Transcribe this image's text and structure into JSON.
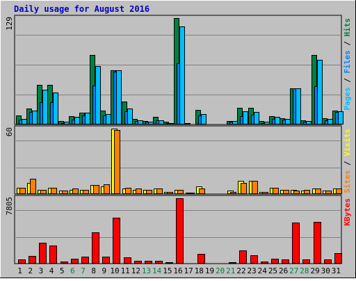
{
  "colors": {
    "hits": "#008040",
    "files": "#0080ff",
    "pages": "#00c0ff",
    "visits": "#ffff00",
    "sites": "#ff8000",
    "kbytes": "#ff0000",
    "title": "#0000c0",
    "weekend": "#008040",
    "weekday": "#000000",
    "background": "#c0c0c0"
  },
  "chart_data": {
    "type": "bar",
    "title": "Daily usage for August 2016",
    "days": [
      "1",
      "2",
      "3",
      "4",
      "5",
      "6",
      "7",
      "8",
      "9",
      "10",
      "11",
      "12",
      "13",
      "14",
      "15",
      "16",
      "17",
      "18",
      "19",
      "20",
      "21",
      "22",
      "23",
      "24",
      "25",
      "26",
      "27",
      "28",
      "29",
      "30",
      "31"
    ],
    "weekend_days": [
      6,
      7,
      13,
      14,
      20,
      21,
      27,
      28
    ],
    "panels": [
      {
        "id": "top",
        "scale_label": "129",
        "ymax": 129,
        "legend": [
          {
            "text": "Pages",
            "color": "#00c0ff"
          },
          {
            "text": "Files",
            "color": "#0080ff"
          },
          {
            "text": "Hits",
            "color": "#008040"
          }
        ],
        "series": [
          {
            "name": "Hits",
            "color": "#008040",
            "values": [
              11,
              19,
              48,
              48,
              4,
              10,
              14,
              84,
              17,
              66,
              28,
              7,
              4,
              9,
              3,
              129,
              2,
              18,
              0,
              0,
              4,
              20,
              20,
              4,
              10,
              8,
              44,
              5,
              84,
              8,
              17
            ]
          },
          {
            "name": "Files",
            "color": "#0080ff",
            "values": [
              6,
              15,
              27,
              27,
              2,
              6,
              11,
              47,
              11,
              64,
              16,
              4,
              3,
              5,
              2,
              74,
              1,
              11,
              0,
              0,
              3,
              10,
              12,
              2,
              7,
              6,
              44,
              3,
              46,
              5,
              15
            ]
          },
          {
            "name": "Pages",
            "color": "#00c0ff",
            "values": [
              7,
              17,
              42,
              39,
              3,
              9,
              14,
              71,
              13,
              66,
              19,
              5,
              3,
              5,
              2,
              119,
              1,
              13,
              0,
              0,
              4,
              16,
              15,
              3,
              9,
              7,
              44,
              4,
              78,
              7,
              16
            ]
          }
        ]
      },
      {
        "id": "middle",
        "scale_label": "60",
        "ymax": 60,
        "legend": [
          {
            "text": "Sites",
            "color": "#ff8000"
          },
          {
            "text": "Visits",
            "color": "#ffff00"
          }
        ],
        "series": [
          {
            "name": "Visits",
            "color": "#ffff00",
            "values": [
              6,
              10,
              4,
              6,
              3,
              4,
              4,
              8,
              7,
              60,
              5,
              4,
              4,
              5,
              2,
              4,
              1,
              7,
              0,
              0,
              3,
              12,
              12,
              2,
              6,
              4,
              4,
              3,
              5,
              3,
              5
            ]
          },
          {
            "name": "Sites",
            "color": "#ff8000",
            "values": [
              6,
              14,
              4,
              6,
              3,
              5,
              4,
              8,
              9,
              59,
              6,
              5,
              4,
              5,
              2,
              4,
              1,
              5,
              0,
              0,
              2,
              10,
              12,
              2,
              6,
              4,
              3,
              4,
              5,
              3,
              5
            ]
          }
        ]
      },
      {
        "id": "bottom",
        "scale_label": "7805",
        "ymax": 7805,
        "legend": [
          {
            "text": "KBytes",
            "color": "#ff0000"
          }
        ],
        "series": [
          {
            "name": "KBytes",
            "color": "#ff0000",
            "values": [
              520,
              950,
              2450,
              2140,
              220,
              570,
              800,
              3700,
              870,
              5500,
              760,
              340,
              330,
              340,
              160,
              7800,
              120,
              1200,
              0,
              0,
              140,
              1560,
              980,
              250,
              560,
              500,
              4900,
              460,
              5000,
              500,
              1240
            ]
          }
        ]
      }
    ]
  }
}
